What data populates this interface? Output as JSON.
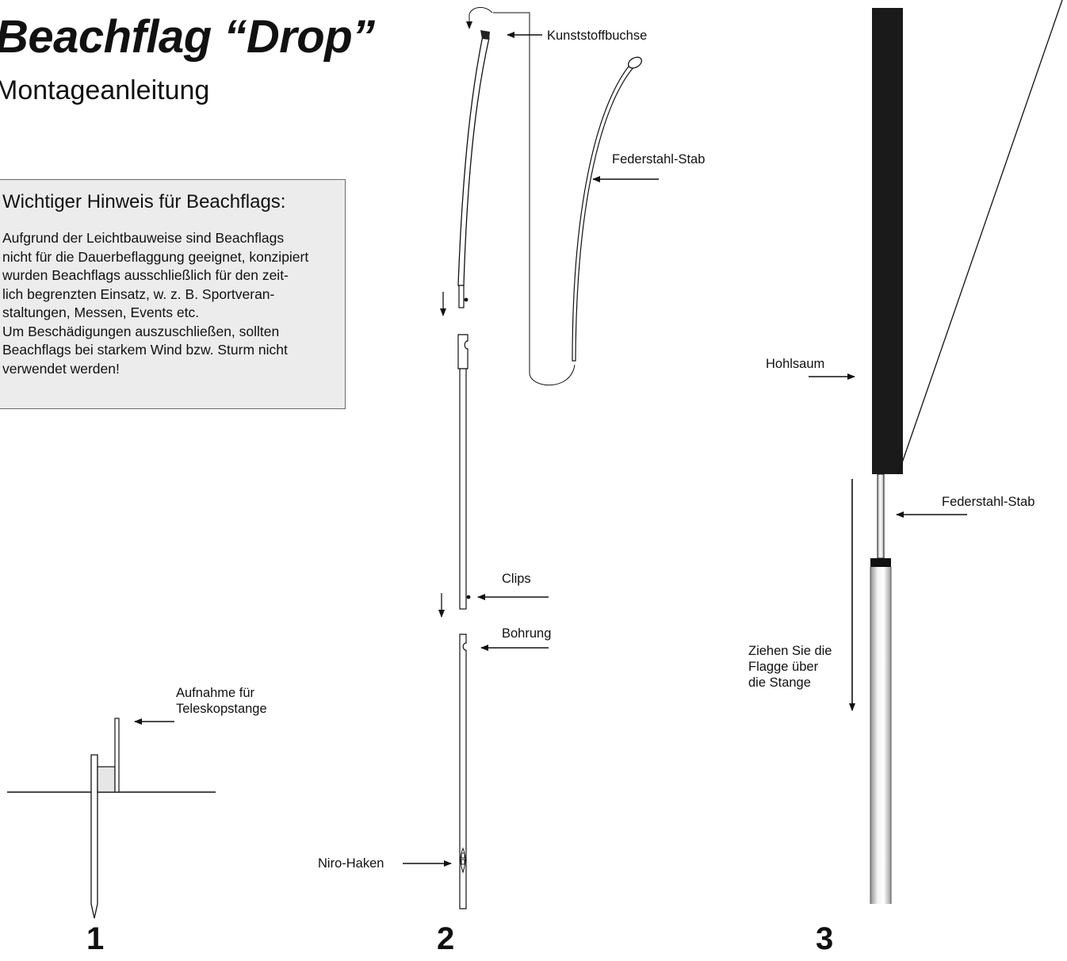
{
  "header": {
    "title": "Beachflag “Drop”",
    "subtitle": "Montageanleitung"
  },
  "notice": {
    "title": "Wichtiger Hinweis für Beachflags:",
    "lines": [
      "Aufgrund der Leichtbauweise sind Beachflags",
      "nicht für die Dauerbeflaggung geeignet, konzipiert",
      "wurden Beachflags ausschließlich für den zeit-",
      "lich begrenzten Einsatz, w. z. B. Sportveran-",
      "staltungen, Messen, Events etc.",
      "Um Beschädigungen auszuschließen, sollten",
      "Beachflags bei starkem Wind bzw. Sturm nicht",
      "verwendet werden!"
    ]
  },
  "labels": {
    "kunststoffbuchse": "Kunststoffbuchse",
    "federstahl_stab_2": "Federstahl-Stab",
    "clips": "Clips",
    "bohrung": "Bohrung",
    "niro_haken": "Niro-Haken",
    "aufnahme": [
      "Aufnahme für",
      "Teleskopstange"
    ],
    "hohlsaum": "Hohlsaum",
    "federstahl_stab_3": "Federstahl-Stab",
    "ziehen": [
      "Ziehen Sie die",
      "Flagge über",
      "die Stange"
    ]
  },
  "steps": [
    "1",
    "2",
    "3"
  ],
  "colors": {
    "ink": "#111111",
    "notice_bg": "#ececec",
    "flag": "#1a1a1a",
    "pole_light": "#f2f2f2",
    "pole_dark": "#9a9a9a"
  }
}
